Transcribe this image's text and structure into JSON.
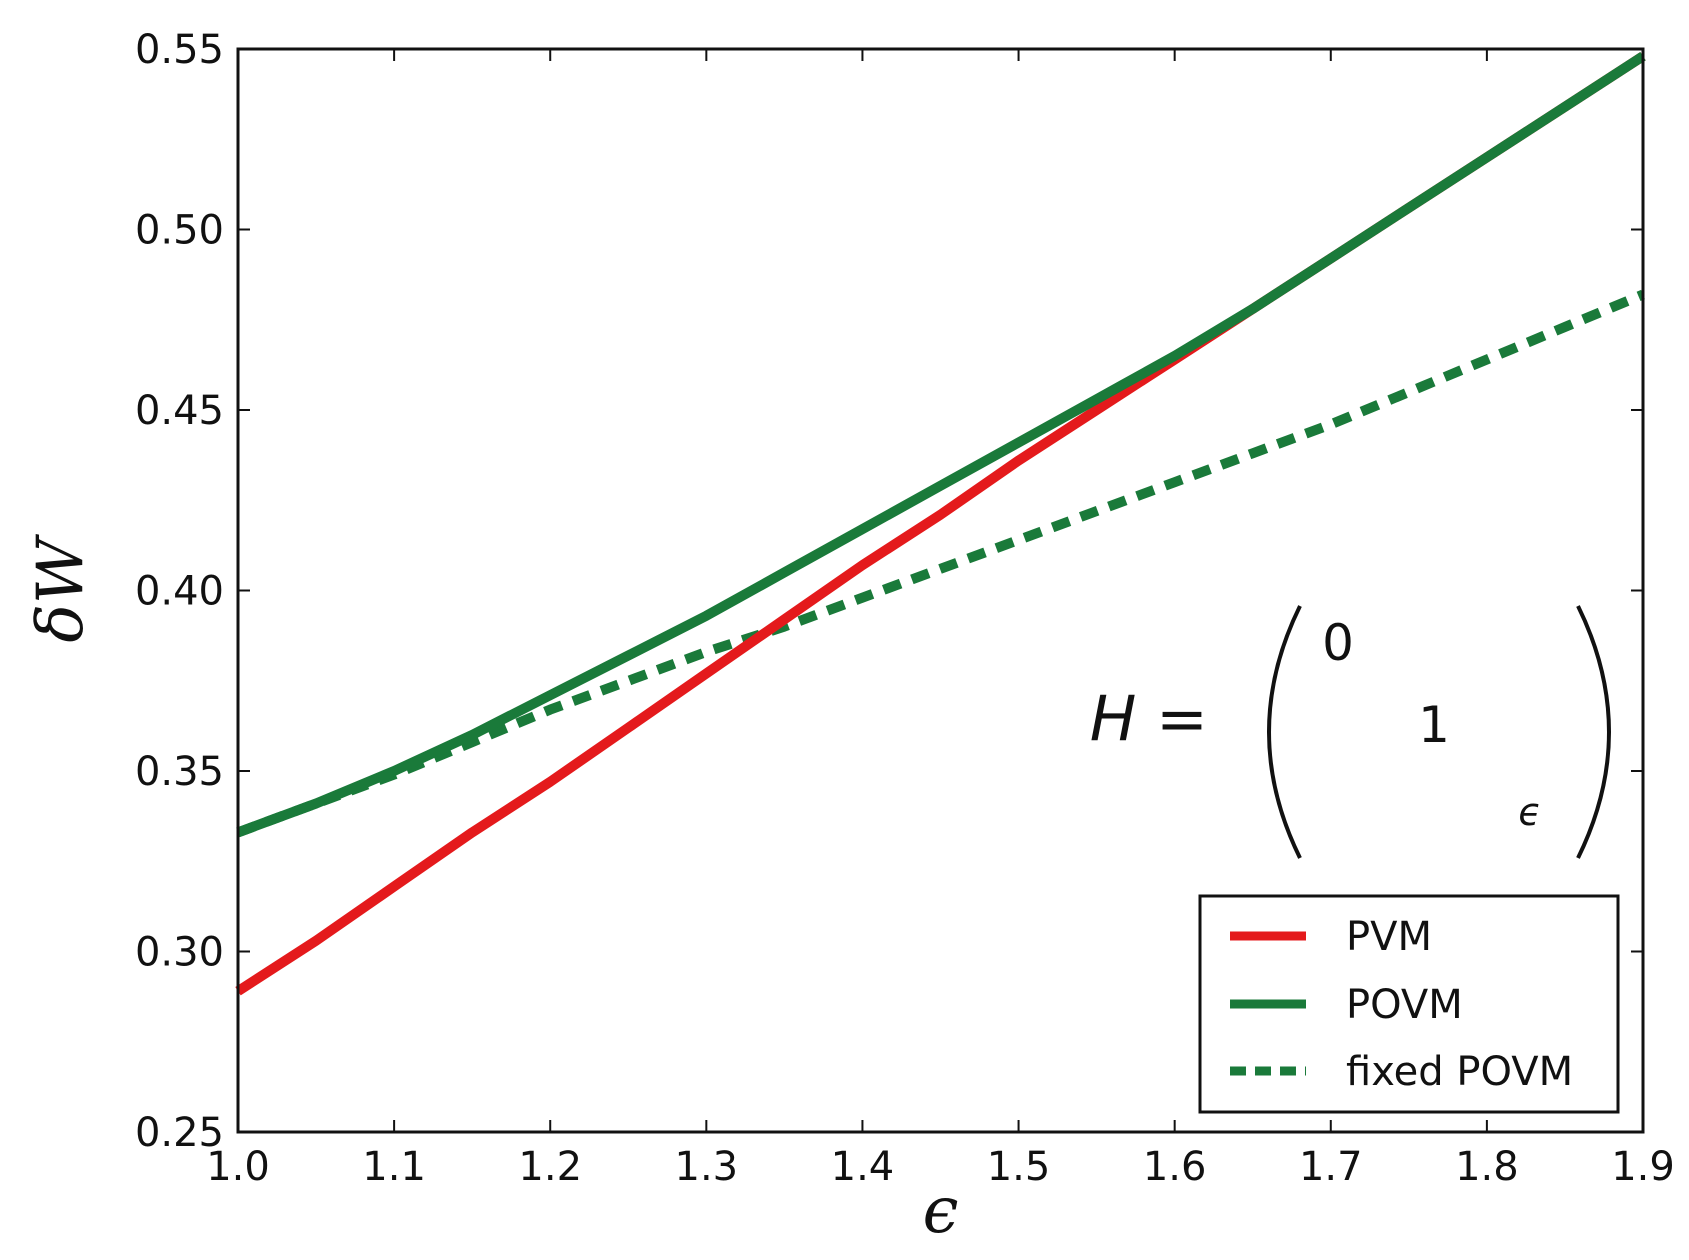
{
  "chart_data": {
    "type": "line",
    "xlabel": "ϵ",
    "ylabel": "δW",
    "xlim": [
      1.0,
      1.9
    ],
    "ylim": [
      0.25,
      0.55
    ],
    "xticks": [
      "1.0",
      "1.1",
      "1.2",
      "1.3",
      "1.4",
      "1.5",
      "1.6",
      "1.7",
      "1.8",
      "1.9"
    ],
    "yticks": [
      "0.25",
      "0.30",
      "0.35",
      "0.40",
      "0.45",
      "0.50",
      "0.55"
    ],
    "grid": false,
    "legend_position": "bottom-right",
    "annotation": {
      "lhs": "H =",
      "diagonal": [
        "0",
        "1",
        "ϵ"
      ]
    },
    "series": [
      {
        "name": "PVM",
        "color": "#e41a1c",
        "style": "solid",
        "x": [
          1.0,
          1.05,
          1.1,
          1.15,
          1.2,
          1.25,
          1.3,
          1.35,
          1.4,
          1.45,
          1.5,
          1.55,
          1.6,
          1.65,
          1.7,
          1.75,
          1.8,
          1.85,
          1.9
        ],
        "y": [
          0.289,
          0.303,
          0.318,
          0.333,
          0.347,
          0.362,
          0.377,
          0.392,
          0.407,
          0.421,
          0.436,
          0.45,
          0.464,
          0.478,
          0.492,
          0.506,
          0.52,
          0.534,
          0.548
        ]
      },
      {
        "name": "POVM",
        "color": "#1a7a3a",
        "style": "solid",
        "x": [
          1.0,
          1.05,
          1.1,
          1.15,
          1.2,
          1.25,
          1.3,
          1.35,
          1.4,
          1.45,
          1.5,
          1.55,
          1.6,
          1.65,
          1.7,
          1.75,
          1.8,
          1.85,
          1.9
        ],
        "y": [
          0.333,
          0.341,
          0.35,
          0.36,
          0.371,
          0.382,
          0.393,
          0.405,
          0.417,
          0.429,
          0.441,
          0.453,
          0.465,
          0.478,
          0.492,
          0.506,
          0.52,
          0.534,
          0.548
        ]
      },
      {
        "name": "fixed POVM",
        "color": "#1a7a3a",
        "style": "dashed",
        "x": [
          1.0,
          1.05,
          1.1,
          1.15,
          1.2,
          1.25,
          1.3,
          1.35,
          1.4,
          1.45,
          1.5,
          1.55,
          1.6,
          1.65,
          1.7,
          1.75,
          1.8,
          1.85,
          1.9
        ],
        "y": [
          0.333,
          0.341,
          0.349,
          0.358,
          0.367,
          0.375,
          0.383,
          0.39,
          0.398,
          0.406,
          0.414,
          0.422,
          0.43,
          0.438,
          0.446,
          0.455,
          0.464,
          0.473,
          0.482
        ]
      }
    ]
  }
}
